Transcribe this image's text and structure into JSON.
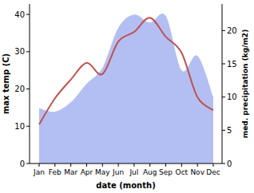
{
  "chart_data": {
    "type": "line",
    "x_label": "date (month)",
    "y_label": "max temp (C)",
    "y2_label": "med. precipitation (kg/m2)",
    "categories": [
      "Jan",
      "Feb",
      "Mar",
      "Apr",
      "May",
      "Jun",
      "Jul",
      "Aug",
      "Sep",
      "Oct",
      "Nov",
      "Dec"
    ],
    "ylim": [
      0,
      42.8
    ],
    "yticks": [
      0,
      10,
      20,
      30,
      40
    ],
    "y2lim": [
      0,
      24
    ],
    "y2ticks": [
      0,
      5,
      10,
      15,
      20
    ],
    "series": [
      {
        "name": "med. precipitation (kg/m2)",
        "type": "area",
        "axis": "y2",
        "color": "#b3bff2",
        "values": [
          8.3,
          7.8,
          9.2,
          12,
          14.4,
          20.4,
          22.4,
          21.2,
          22.2,
          14,
          16.2,
          10
        ]
      },
      {
        "name": "max temp (C)",
        "type": "line",
        "color": "#c0504d",
        "values": [
          10.5,
          17.5,
          22.5,
          27,
          24,
          32.7,
          35.3,
          39.1,
          34,
          29.7,
          17.8,
          14.3
        ]
      }
    ]
  }
}
